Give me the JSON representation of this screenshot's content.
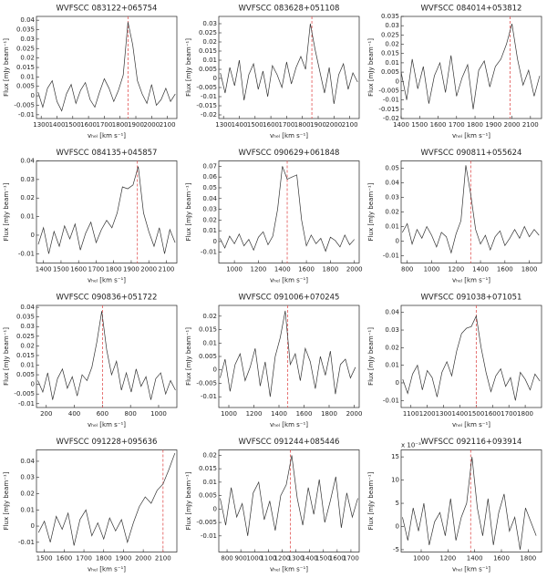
{
  "chart_data": [
    {
      "type": "line",
      "title": "WVFSCC 083122+065754",
      "xlabel": "vₕₑₗ [km s⁻¹]",
      "ylabel": "Flux [mJy beam⁻¹]",
      "color": "#333333",
      "vline": 1850,
      "vline_color": "#e05050",
      "xlim": [
        1270,
        2160
      ],
      "xticks": [
        1300,
        1400,
        1500,
        1600,
        1700,
        1800,
        1900,
        2000,
        2100
      ],
      "ylim": [
        -0.012,
        0.042
      ],
      "yticks": [
        -0.01,
        -0.005,
        0,
        0.005,
        0.01,
        0.015,
        0.02,
        0.025,
        0.03,
        0.035,
        0.04
      ],
      "x": [
        1280,
        1310,
        1340,
        1370,
        1400,
        1430,
        1460,
        1490,
        1520,
        1550,
        1580,
        1610,
        1640,
        1670,
        1700,
        1730,
        1760,
        1790,
        1820,
        1850,
        1880,
        1910,
        1940,
        1970,
        2000,
        2030,
        2060,
        2090,
        2120,
        2150
      ],
      "values": [
        0.002,
        -0.006,
        0.004,
        0.008,
        -0.003,
        -0.008,
        0.001,
        0.006,
        -0.004,
        0.003,
        0.007,
        -0.002,
        -0.006,
        0.002,
        0.009,
        0.004,
        -0.003,
        0.003,
        0.011,
        0.039,
        0.027,
        0.008,
        0.001,
        -0.004,
        0.006,
        -0.005,
        -0.002,
        0.004,
        -0.003,
        0.001
      ]
    },
    {
      "type": "line",
      "title": "WVFSCC 083628+051108",
      "xlabel": "vₕₑₗ [km s⁻¹]",
      "ylabel": "Flux [mJy beam⁻¹]",
      "color": "#333333",
      "vline": 1860,
      "vline_color": "#e05050",
      "xlim": [
        1270,
        2160
      ],
      "xticks": [
        1300,
        1400,
        1500,
        1600,
        1700,
        1800,
        1900,
        2000,
        2100
      ],
      "ylim": [
        -0.022,
        0.034
      ],
      "yticks": [
        -0.02,
        -0.015,
        -0.01,
        -0.005,
        0,
        0.005,
        0.01,
        0.015,
        0.02,
        0.025,
        0.03
      ],
      "x": [
        1280,
        1310,
        1340,
        1370,
        1400,
        1430,
        1460,
        1490,
        1520,
        1550,
        1580,
        1610,
        1640,
        1670,
        1700,
        1730,
        1760,
        1790,
        1820,
        1850,
        1880,
        1910,
        1940,
        1970,
        2000,
        2030,
        2060,
        2090,
        2120,
        2150
      ],
      "values": [
        0.003,
        -0.008,
        0.006,
        -0.004,
        0.01,
        -0.012,
        0.002,
        0.008,
        -0.006,
        0.004,
        -0.01,
        0.007,
        0.002,
        -0.005,
        0.009,
        -0.003,
        0.006,
        0.012,
        0.005,
        0.03,
        0.016,
        0.004,
        -0.008,
        0.006,
        -0.014,
        0.002,
        0.008,
        -0.006,
        0.003,
        -0.002
      ]
    },
    {
      "type": "line",
      "title": "WVFSCC 084014+053812",
      "xlabel": "vₕₑₗ [km s⁻¹]",
      "ylabel": "Flux [mJy beam⁻¹]",
      "color": "#333333",
      "vline": 1990,
      "vline_color": "#e05050",
      "xlim": [
        1400,
        2160
      ],
      "xticks": [
        1400,
        1500,
        1600,
        1700,
        1800,
        1900,
        2000,
        2100
      ],
      "ylim": [
        -0.02,
        0.035
      ],
      "yticks": [
        -0.02,
        -0.015,
        -0.01,
        -0.005,
        0,
        0.005,
        0.01,
        0.015,
        0.02,
        0.025,
        0.03,
        0.035
      ],
      "x": [
        1400,
        1430,
        1460,
        1490,
        1520,
        1550,
        1580,
        1610,
        1640,
        1670,
        1700,
        1730,
        1760,
        1790,
        1820,
        1850,
        1880,
        1910,
        1940,
        1970,
        2000,
        2030,
        2060,
        2090,
        2120,
        2150
      ],
      "values": [
        0.005,
        -0.01,
        0.012,
        -0.004,
        0.008,
        -0.012,
        0.003,
        0.01,
        -0.006,
        0.014,
        -0.008,
        0.002,
        0.009,
        -0.015,
        0.006,
        0.011,
        -0.003,
        0.008,
        0.012,
        0.02,
        0.031,
        0.012,
        -0.002,
        0.006,
        -0.008,
        0.003
      ]
    },
    {
      "type": "line",
      "title": "WVFSCC 084135+045857",
      "xlabel": "vₕₑₗ [km s⁻¹]",
      "ylabel": "Flux [mJy beam⁻¹]",
      "color": "#333333",
      "vline": 1935,
      "vline_color": "#e05050",
      "xlim": [
        1360,
        2160
      ],
      "xticks": [
        1400,
        1500,
        1600,
        1700,
        1800,
        1900,
        2000,
        2100
      ],
      "ylim": [
        -0.015,
        0.04
      ],
      "yticks": [
        -0.01,
        0,
        0.01,
        0.02,
        0.03,
        0.04
      ],
      "x": [
        1370,
        1400,
        1430,
        1460,
        1490,
        1520,
        1550,
        1580,
        1610,
        1640,
        1670,
        1700,
        1730,
        1760,
        1790,
        1820,
        1850,
        1880,
        1910,
        1940,
        1970,
        2000,
        2030,
        2060,
        2090,
        2120,
        2150
      ],
      "values": [
        -0.005,
        0.004,
        -0.01,
        0.002,
        -0.006,
        0.005,
        -0.002,
        0.006,
        -0.008,
        0.001,
        0.007,
        -0.004,
        0.003,
        0.008,
        0.004,
        0.012,
        0.026,
        0.025,
        0.027,
        0.037,
        0.012,
        0.002,
        -0.006,
        0.004,
        -0.01,
        0.003,
        -0.004
      ]
    },
    {
      "type": "line",
      "title": "WVFSCC 090629+061848",
      "xlabel": "vₕₑₗ [km s⁻¹]",
      "ylabel": "Flux [mJy beam⁻¹]",
      "color": "#333333",
      "vline": 1440,
      "vline_color": "#e05050",
      "xlim": [
        870,
        2040
      ],
      "xticks": [
        1000,
        1200,
        1400,
        1600,
        1800,
        2000
      ],
      "ylim": [
        -0.02,
        0.075
      ],
      "yticks": [
        -0.01,
        0,
        0.01,
        0.02,
        0.03,
        0.04,
        0.05,
        0.06,
        0.07
      ],
      "x": [
        880,
        920,
        960,
        1000,
        1040,
        1080,
        1120,
        1160,
        1200,
        1240,
        1280,
        1320,
        1360,
        1400,
        1440,
        1480,
        1520,
        1560,
        1600,
        1640,
        1680,
        1720,
        1760,
        1800,
        1840,
        1880,
        1920,
        1960,
        2000
      ],
      "values": [
        0.003,
        -0.006,
        0.005,
        -0.002,
        0.007,
        -0.004,
        0.002,
        -0.008,
        0.004,
        0.009,
        -0.003,
        0.005,
        0.03,
        0.07,
        0.058,
        0.06,
        0.062,
        0.02,
        -0.004,
        0.006,
        -0.002,
        0.003,
        -0.009,
        0.004,
        0.001,
        -0.005,
        0.006,
        -0.003,
        0.002
      ]
    },
    {
      "type": "line",
      "title": "WVFSCC 090811+055624",
      "xlabel": "vₕₑₗ [km s⁻¹]",
      "ylabel": "Flux [mJy beam⁻¹]",
      "color": "#333333",
      "vline": 1320,
      "vline_color": "#e05050",
      "xlim": [
        750,
        1900
      ],
      "xticks": [
        800,
        1000,
        1200,
        1400,
        1600,
        1800
      ],
      "ylim": [
        -0.015,
        0.055
      ],
      "yticks": [
        -0.01,
        0,
        0.01,
        0.02,
        0.03,
        0.04,
        0.05
      ],
      "x": [
        760,
        800,
        840,
        880,
        920,
        960,
        1000,
        1040,
        1080,
        1120,
        1160,
        1200,
        1240,
        1280,
        1320,
        1360,
        1400,
        1440,
        1480,
        1520,
        1560,
        1600,
        1640,
        1680,
        1720,
        1760,
        1800,
        1840,
        1880
      ],
      "values": [
        0.006,
        0.012,
        -0.002,
        0.008,
        0.002,
        0.01,
        0.004,
        -0.004,
        0.006,
        0.003,
        -0.008,
        0.005,
        0.014,
        0.052,
        0.032,
        0.008,
        -0.002,
        0.004,
        -0.006,
        0.003,
        0.007,
        -0.003,
        0.002,
        0.008,
        0.002,
        0.01,
        0.003,
        0.008,
        0.004
      ]
    },
    {
      "type": "line",
      "title": "WVFSCC 090836+051722",
      "xlabel": "vₕₑₗ [km s⁻¹]",
      "ylabel": "Flux [mJy beam⁻¹]",
      "color": "#333333",
      "vline": 600,
      "vline_color": "#e05050",
      "xlim": [
        130,
        1130
      ],
      "xticks": [
        200,
        400,
        600,
        800,
        1000
      ],
      "ylim": [
        -0.012,
        0.041
      ],
      "yticks": [
        -0.01,
        -0.005,
        0,
        0.005,
        0.01,
        0.015,
        0.02,
        0.025,
        0.03,
        0.035,
        0.04
      ],
      "x": [
        140,
        175,
        210,
        245,
        280,
        315,
        350,
        385,
        420,
        455,
        490,
        525,
        560,
        595,
        630,
        665,
        700,
        735,
        770,
        805,
        840,
        875,
        910,
        945,
        980,
        1015,
        1050,
        1085,
        1120
      ],
      "values": [
        0.002,
        -0.004,
        0.006,
        -0.008,
        0.003,
        0.008,
        -0.002,
        0.004,
        -0.006,
        0.005,
        0.002,
        0.009,
        0.022,
        0.038,
        0.018,
        0.005,
        0.012,
        -0.003,
        0.006,
        -0.004,
        0.008,
        -0.001,
        0.004,
        -0.008,
        0.003,
        0.006,
        -0.005,
        0.002,
        -0.003
      ]
    },
    {
      "type": "line",
      "title": "WVFSCC 091006+070245",
      "xlabel": "vₕₑₗ [km s⁻¹]",
      "ylabel": "Flux [mJy beam⁻¹]",
      "color": "#333333",
      "vline": 1470,
      "vline_color": "#e05050",
      "xlim": [
        920,
        2040
      ],
      "xticks": [
        1000,
        1200,
        1400,
        1600,
        1800,
        2000
      ],
      "ylim": [
        -0.014,
        0.024
      ],
      "yticks": [
        -0.01,
        -0.005,
        0,
        0.005,
        0.01,
        0.015,
        0.02
      ],
      "x": [
        930,
        970,
        1010,
        1050,
        1090,
        1130,
        1170,
        1210,
        1250,
        1290,
        1330,
        1370,
        1410,
        1450,
        1490,
        1530,
        1570,
        1610,
        1650,
        1690,
        1730,
        1770,
        1810,
        1850,
        1890,
        1930,
        1970,
        2010
      ],
      "values": [
        -0.003,
        0.004,
        -0.008,
        0.002,
        0.006,
        -0.004,
        0.001,
        0.008,
        -0.006,
        0.003,
        -0.01,
        0.005,
        0.012,
        0.022,
        0.002,
        0.006,
        -0.004,
        0.008,
        0.003,
        -0.007,
        0.005,
        -0.002,
        0.007,
        -0.009,
        0.002,
        0.004,
        -0.003,
        0.001
      ]
    },
    {
      "type": "line",
      "title": "WVFSCC 091038+071051",
      "xlabel": "vₕₑₗ [km s⁻¹]",
      "ylabel": "Flux [mJy beam⁻¹]",
      "color": "#333333",
      "vline": 1500,
      "vline_color": "#e05050",
      "xlim": [
        1040,
        1900
      ],
      "xticks": [
        1100,
        1200,
        1300,
        1400,
        1500,
        1600,
        1700,
        1800
      ],
      "ylim": [
        -0.014,
        0.044
      ],
      "yticks": [
        -0.01,
        0,
        0.01,
        0.02,
        0.03,
        0.04
      ],
      "x": [
        1050,
        1080,
        1110,
        1140,
        1170,
        1200,
        1230,
        1260,
        1290,
        1320,
        1350,
        1380,
        1410,
        1440,
        1470,
        1500,
        1530,
        1560,
        1590,
        1620,
        1650,
        1680,
        1710,
        1740,
        1770,
        1800,
        1830,
        1860,
        1890
      ],
      "values": [
        0.002,
        -0.006,
        0.005,
        0.01,
        -0.004,
        0.007,
        0.003,
        -0.008,
        0.006,
        0.012,
        0.004,
        0.018,
        0.028,
        0.031,
        0.032,
        0.038,
        0.02,
        0.006,
        -0.005,
        0.004,
        0.008,
        -0.002,
        0.003,
        -0.01,
        0.006,
        0.002,
        -0.004,
        0.005,
        0.001
      ]
    },
    {
      "type": "line",
      "title": "WVFSCC 091228+095636",
      "xlabel": "vₕₑₗ [km s⁻¹]",
      "ylabel": "Flux [mJy beam⁻¹]",
      "color": "#333333",
      "vline": 2100,
      "vline_color": "#e05050",
      "xlim": [
        1460,
        2170
      ],
      "xticks": [
        1500,
        1600,
        1700,
        1800,
        1900,
        2000,
        2100
      ],
      "ylim": [
        -0.016,
        0.047
      ],
      "yticks": [
        -0.01,
        0,
        0.01,
        0.02,
        0.03,
        0.04
      ],
      "x": [
        1470,
        1500,
        1530,
        1560,
        1590,
        1620,
        1650,
        1680,
        1710,
        1740,
        1770,
        1800,
        1830,
        1860,
        1890,
        1920,
        1950,
        1980,
        2010,
        2040,
        2070,
        2100,
        2130,
        2160
      ],
      "values": [
        -0.004,
        0.003,
        -0.01,
        0.006,
        -0.002,
        0.008,
        -0.012,
        0.004,
        0.01,
        -0.006,
        0.002,
        -0.008,
        0.005,
        -0.003,
        0.004,
        -0.01,
        0.002,
        0.012,
        0.018,
        0.014,
        0.022,
        0.026,
        0.035,
        0.045
      ]
    },
    {
      "type": "line",
      "title": "WVFSCC 091244+085446",
      "xlabel": "vₕₑₗ [km s⁻¹]",
      "ylabel": "Flux [mJy beam⁻¹]",
      "color": "#333333",
      "vline": 1260,
      "vline_color": "#e05050",
      "xlim": [
        740,
        1760
      ],
      "xticks": [
        800,
        900,
        1000,
        1100,
        1200,
        1300,
        1400,
        1500,
        1600,
        1700
      ],
      "ylim": [
        -0.016,
        0.022
      ],
      "yticks": [
        -0.01,
        -0.005,
        0,
        0.005,
        0.01,
        0.015,
        0.02
      ],
      "x": [
        750,
        790,
        830,
        870,
        910,
        950,
        990,
        1030,
        1070,
        1110,
        1150,
        1190,
        1230,
        1270,
        1310,
        1350,
        1390,
        1430,
        1470,
        1510,
        1550,
        1590,
        1630,
        1670,
        1710,
        1750
      ],
      "values": [
        0.004,
        -0.006,
        0.008,
        -0.003,
        0.002,
        -0.01,
        0.006,
        0.01,
        -0.004,
        0.003,
        -0.008,
        0.005,
        0.009,
        0.02,
        0.004,
        -0.006,
        0.008,
        -0.002,
        0.011,
        -0.005,
        0.003,
        0.012,
        -0.007,
        0.006,
        -0.003,
        0.004
      ]
    },
    {
      "type": "line",
      "title": "WVFSCC 092116+093914",
      "xlabel": "vₕₑₗ [km s⁻¹]",
      "ylabel": "Flux [mJy beam⁻¹]",
      "multiplier": "x 10⁻³",
      "color": "#333333",
      "vline": 1370,
      "vline_color": "#e05050",
      "xlim": [
        850,
        1900
      ],
      "xticks": [
        1000,
        1200,
        1400,
        1600,
        1800
      ],
      "ylim": [
        -5.5,
        16.5
      ],
      "yticks": [
        -5,
        0,
        5,
        10,
        15
      ],
      "x": [
        860,
        900,
        940,
        980,
        1020,
        1060,
        1100,
        1140,
        1180,
        1220,
        1260,
        1300,
        1340,
        1380,
        1420,
        1460,
        1500,
        1540,
        1580,
        1620,
        1660,
        1700,
        1740,
        1780,
        1820,
        1860
      ],
      "values": [
        2,
        -3,
        4,
        -1,
        5,
        -4,
        1,
        3,
        -2,
        6,
        -3,
        2,
        5,
        15,
        4,
        -2,
        6,
        -4,
        3,
        7,
        -1,
        2,
        -5,
        4,
        1,
        -2
      ]
    }
  ]
}
